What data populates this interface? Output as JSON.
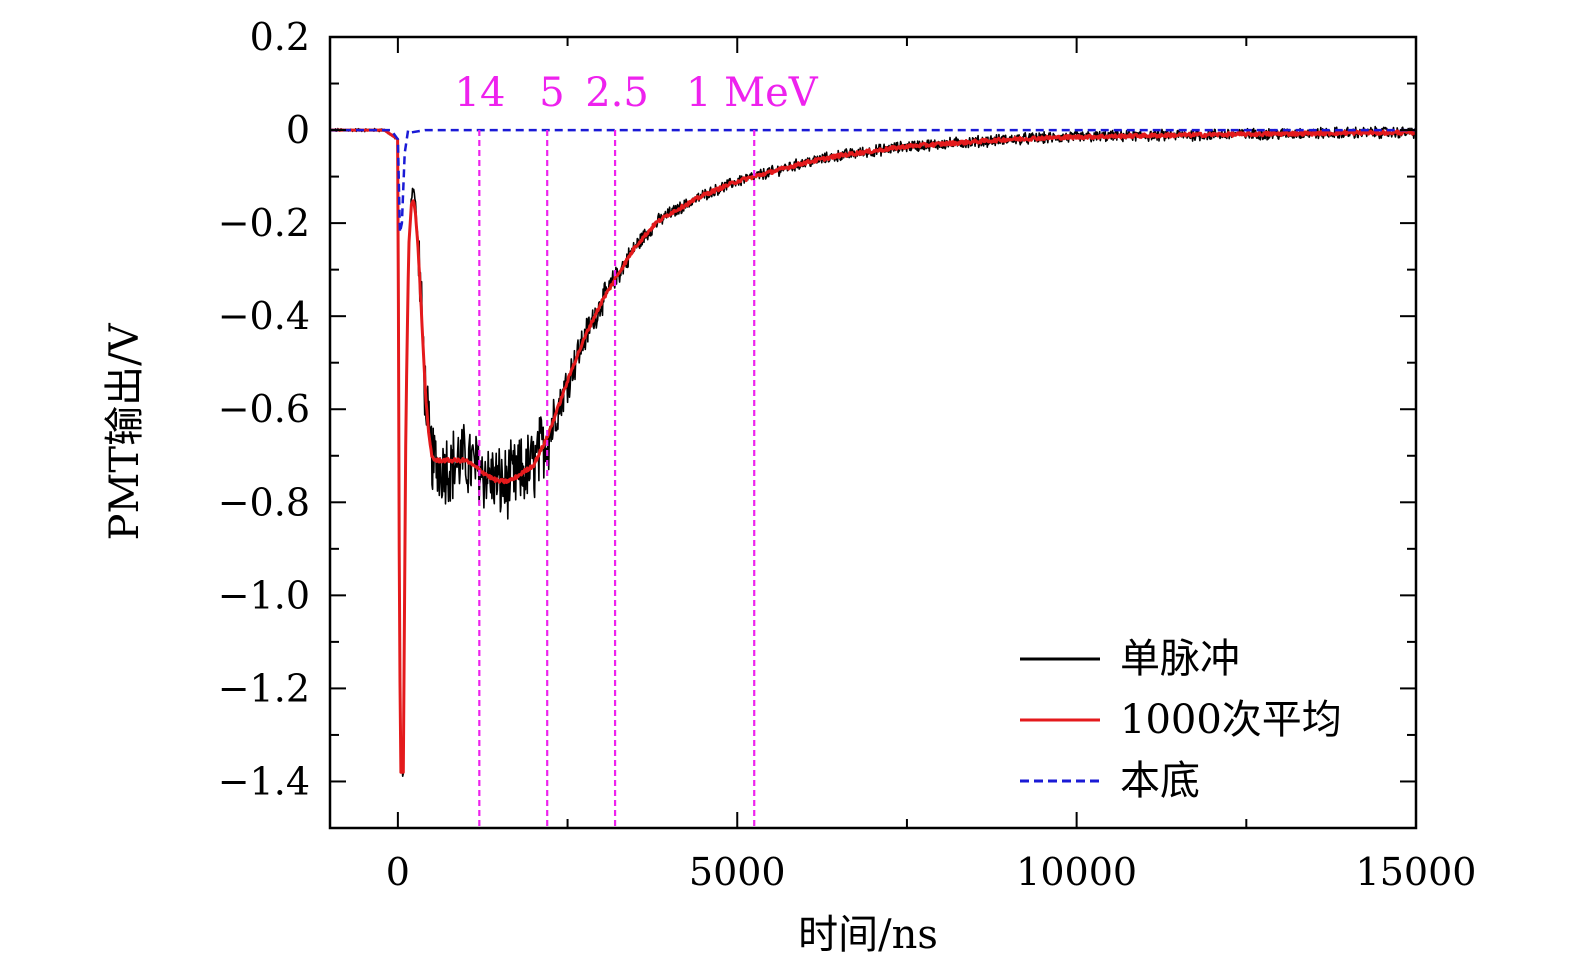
{
  "chart_data": {
    "type": "line",
    "title": "",
    "xlabel": "时间/ns",
    "ylabel": "PMT输出/V",
    "xlim": [
      -1000,
      15000
    ],
    "ylim": [
      -1.5,
      0.2
    ],
    "x_ticks": [
      0,
      5000,
      10000,
      15000
    ],
    "x_tick_labels": [
      "0",
      "5000",
      "10000",
      "15000"
    ],
    "y_ticks": [
      0.2,
      0,
      -0.2,
      -0.4,
      -0.6,
      -0.8,
      -1.0,
      -1.2,
      -1.4
    ],
    "y_tick_labels": [
      "0.2",
      "0",
      "−0.2",
      "−0.4",
      "−0.6",
      "−0.8",
      "−1.0",
      "−1.2",
      "−1.4"
    ],
    "legend_position": "bottom-right",
    "series": [
      {
        "name": "单脉冲",
        "color": "#000000",
        "style": "solid",
        "noise": 0.045,
        "x": [
          -1000,
          -200,
          0,
          20,
          40,
          80,
          120,
          160,
          200,
          230,
          260,
          300,
          350,
          400,
          450,
          500,
          550,
          600,
          650,
          700,
          800,
          900,
          1000,
          1100,
          1200,
          1300,
          1400,
          1500,
          1600,
          1700,
          1800,
          1900,
          2000,
          2100,
          2200,
          2300,
          2400,
          2500,
          2600,
          2800,
          3000,
          3200,
          3500,
          3800,
          4000,
          4500,
          5000,
          5500,
          6000,
          6500,
          7000,
          7500,
          8000,
          8500,
          9000,
          9500,
          10000,
          11000,
          12000,
          13000,
          14000,
          15000
        ],
        "y": [
          0.0,
          0.0,
          -0.02,
          -0.9,
          -1.38,
          -1.38,
          -0.6,
          -0.25,
          -0.14,
          -0.12,
          -0.16,
          -0.25,
          -0.4,
          -0.55,
          -0.65,
          -0.7,
          -0.72,
          -0.72,
          -0.72,
          -0.72,
          -0.72,
          -0.71,
          -0.71,
          -0.72,
          -0.73,
          -0.74,
          -0.75,
          -0.76,
          -0.76,
          -0.75,
          -0.74,
          -0.73,
          -0.72,
          -0.69,
          -0.66,
          -0.62,
          -0.58,
          -0.54,
          -0.5,
          -0.43,
          -0.37,
          -0.32,
          -0.25,
          -0.2,
          -0.18,
          -0.14,
          -0.11,
          -0.09,
          -0.07,
          -0.055,
          -0.045,
          -0.035,
          -0.03,
          -0.025,
          -0.02,
          -0.017,
          -0.015,
          -0.012,
          -0.01,
          -0.008,
          -0.006,
          -0.005
        ]
      },
      {
        "name": "1000次平均",
        "color": "#e41a1c",
        "style": "solid",
        "x": [
          -1000,
          -200,
          0,
          20,
          40,
          80,
          120,
          160,
          200,
          230,
          260,
          300,
          350,
          400,
          450,
          500,
          550,
          600,
          650,
          700,
          800,
          900,
          1000,
          1100,
          1200,
          1300,
          1400,
          1500,
          1600,
          1700,
          1800,
          1900,
          2000,
          2100,
          2200,
          2300,
          2400,
          2500,
          2600,
          2800,
          3000,
          3200,
          3500,
          3800,
          4000,
          4500,
          5000,
          5500,
          6000,
          6500,
          7000,
          7500,
          8000,
          8500,
          9000,
          9500,
          10000,
          11000,
          12000,
          13000,
          14000,
          15000
        ],
        "y": [
          0.0,
          0.0,
          -0.02,
          -0.9,
          -1.38,
          -1.38,
          -0.6,
          -0.25,
          -0.16,
          -0.15,
          -0.18,
          -0.26,
          -0.4,
          -0.55,
          -0.65,
          -0.7,
          -0.71,
          -0.71,
          -0.71,
          -0.71,
          -0.71,
          -0.71,
          -0.71,
          -0.72,
          -0.73,
          -0.74,
          -0.75,
          -0.755,
          -0.755,
          -0.75,
          -0.74,
          -0.73,
          -0.72,
          -0.69,
          -0.66,
          -0.62,
          -0.58,
          -0.54,
          -0.5,
          -0.43,
          -0.37,
          -0.32,
          -0.25,
          -0.2,
          -0.18,
          -0.14,
          -0.11,
          -0.09,
          -0.07,
          -0.055,
          -0.045,
          -0.035,
          -0.03,
          -0.025,
          -0.02,
          -0.017,
          -0.015,
          -0.012,
          -0.01,
          -0.008,
          -0.006,
          -0.005
        ]
      },
      {
        "name": "本底",
        "color": "#1a1ad6",
        "style": "dashed",
        "x": [
          -1000,
          -100,
          0,
          30,
          60,
          100,
          150,
          200,
          400,
          1000,
          15000
        ],
        "y": [
          0.0,
          0.0,
          -0.02,
          -0.22,
          -0.2,
          -0.05,
          0.0,
          -0.005,
          0.0,
          0.0,
          0.0
        ]
      }
    ],
    "annotations": {
      "color": "#ee22ee",
      "labels": [
        "14",
        "5",
        "2.5",
        "1 MeV"
      ],
      "vlines_x": [
        1200,
        2200,
        3200,
        5250
      ]
    }
  }
}
